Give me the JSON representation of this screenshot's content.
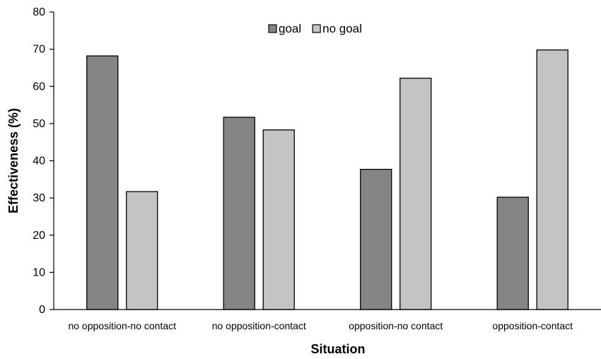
{
  "chart_data": {
    "type": "bar",
    "categories": [
      "no opposition-no contact",
      "no opposition-contact",
      "opposition-no contact",
      "opposition-contact"
    ],
    "series": [
      {
        "name": "goal",
        "values": [
          68.2,
          51.7,
          37.7,
          30.2
        ],
        "color": "#858585"
      },
      {
        "name": "no goal",
        "values": [
          31.7,
          48.3,
          62.2,
          69.8
        ],
        "color": "#c4c4c4"
      }
    ],
    "xlabel": "Situation",
    "ylabel": "Effectiveness (%)",
    "ylim": [
      0,
      80
    ],
    "yticks": [
      "0",
      "10",
      "20",
      "30",
      "40",
      "50",
      "60",
      "70",
      "80"
    ],
    "grid": false,
    "legend_position": "top-center"
  }
}
